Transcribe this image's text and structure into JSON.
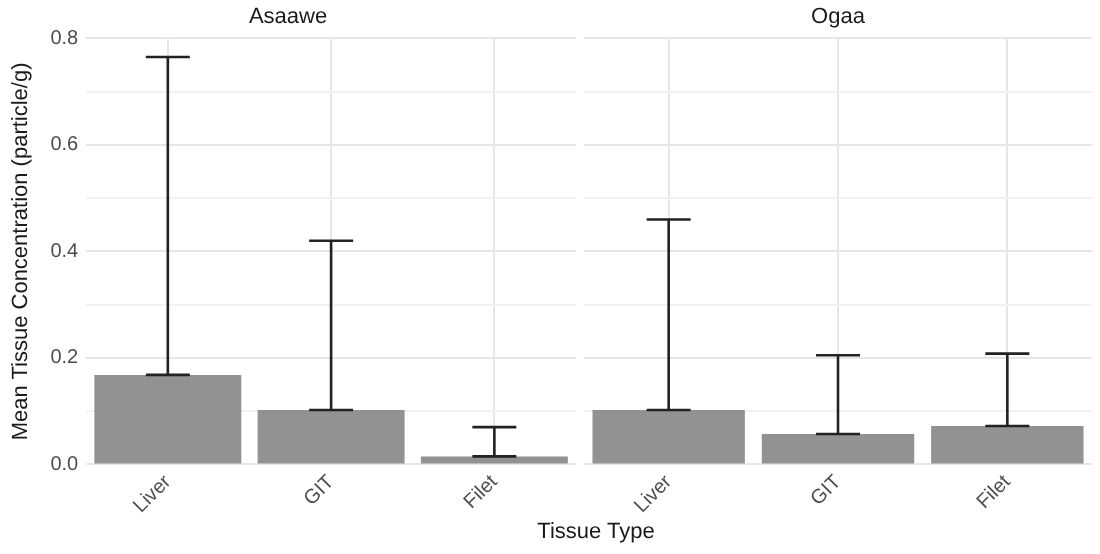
{
  "chart_data": [
    {
      "type": "bar",
      "title": "Asaawe",
      "xlabel": "Tissue Type",
      "ylabel": "Mean Tissue Concentration (particle/g)",
      "categories": [
        "Liver",
        "GIT",
        "Filet"
      ],
      "values": [
        0.168,
        0.102,
        0.015
      ],
      "color": "#929292",
      "errors": [
        [
          0.168,
          0.765
        ],
        [
          0.102,
          0.42
        ],
        [
          0.015,
          0.07
        ]
      ],
      "ylim": [
        0,
        0.8
      ],
      "yticks": [
        {
          "value": 0,
          "label": "0.0"
        },
        {
          "value": 0.1,
          "label": null
        },
        0.2,
        {
          "value": 0.3,
          "label": null
        },
        0.4,
        {
          "value": 0.5,
          "label": null
        },
        0.6,
        {
          "value": 0.7,
          "label": null
        },
        0.8
      ],
      "grid": true
    },
    {
      "type": "bar",
      "title": "Ogaa",
      "categories": [
        "Liver",
        "GIT",
        "Filet"
      ],
      "values": [
        0.102,
        0.057,
        0.072
      ],
      "color": "#929292",
      "errors": [
        [
          0.102,
          0.46
        ],
        [
          0.057,
          0.205
        ],
        [
          0.072,
          0.208
        ]
      ],
      "ylim": [
        0,
        0.8
      ],
      "yticks": [
        0,
        {
          "value": 0.1,
          "label": null
        },
        0.2,
        {
          "value": 0.3,
          "label": null
        },
        0.4,
        {
          "value": 0.5,
          "label": null
        },
        0.6,
        {
          "value": 0.7,
          "label": null
        },
        0.8
      ],
      "grid": true,
      "tick_labels": "x"
    }
  ]
}
